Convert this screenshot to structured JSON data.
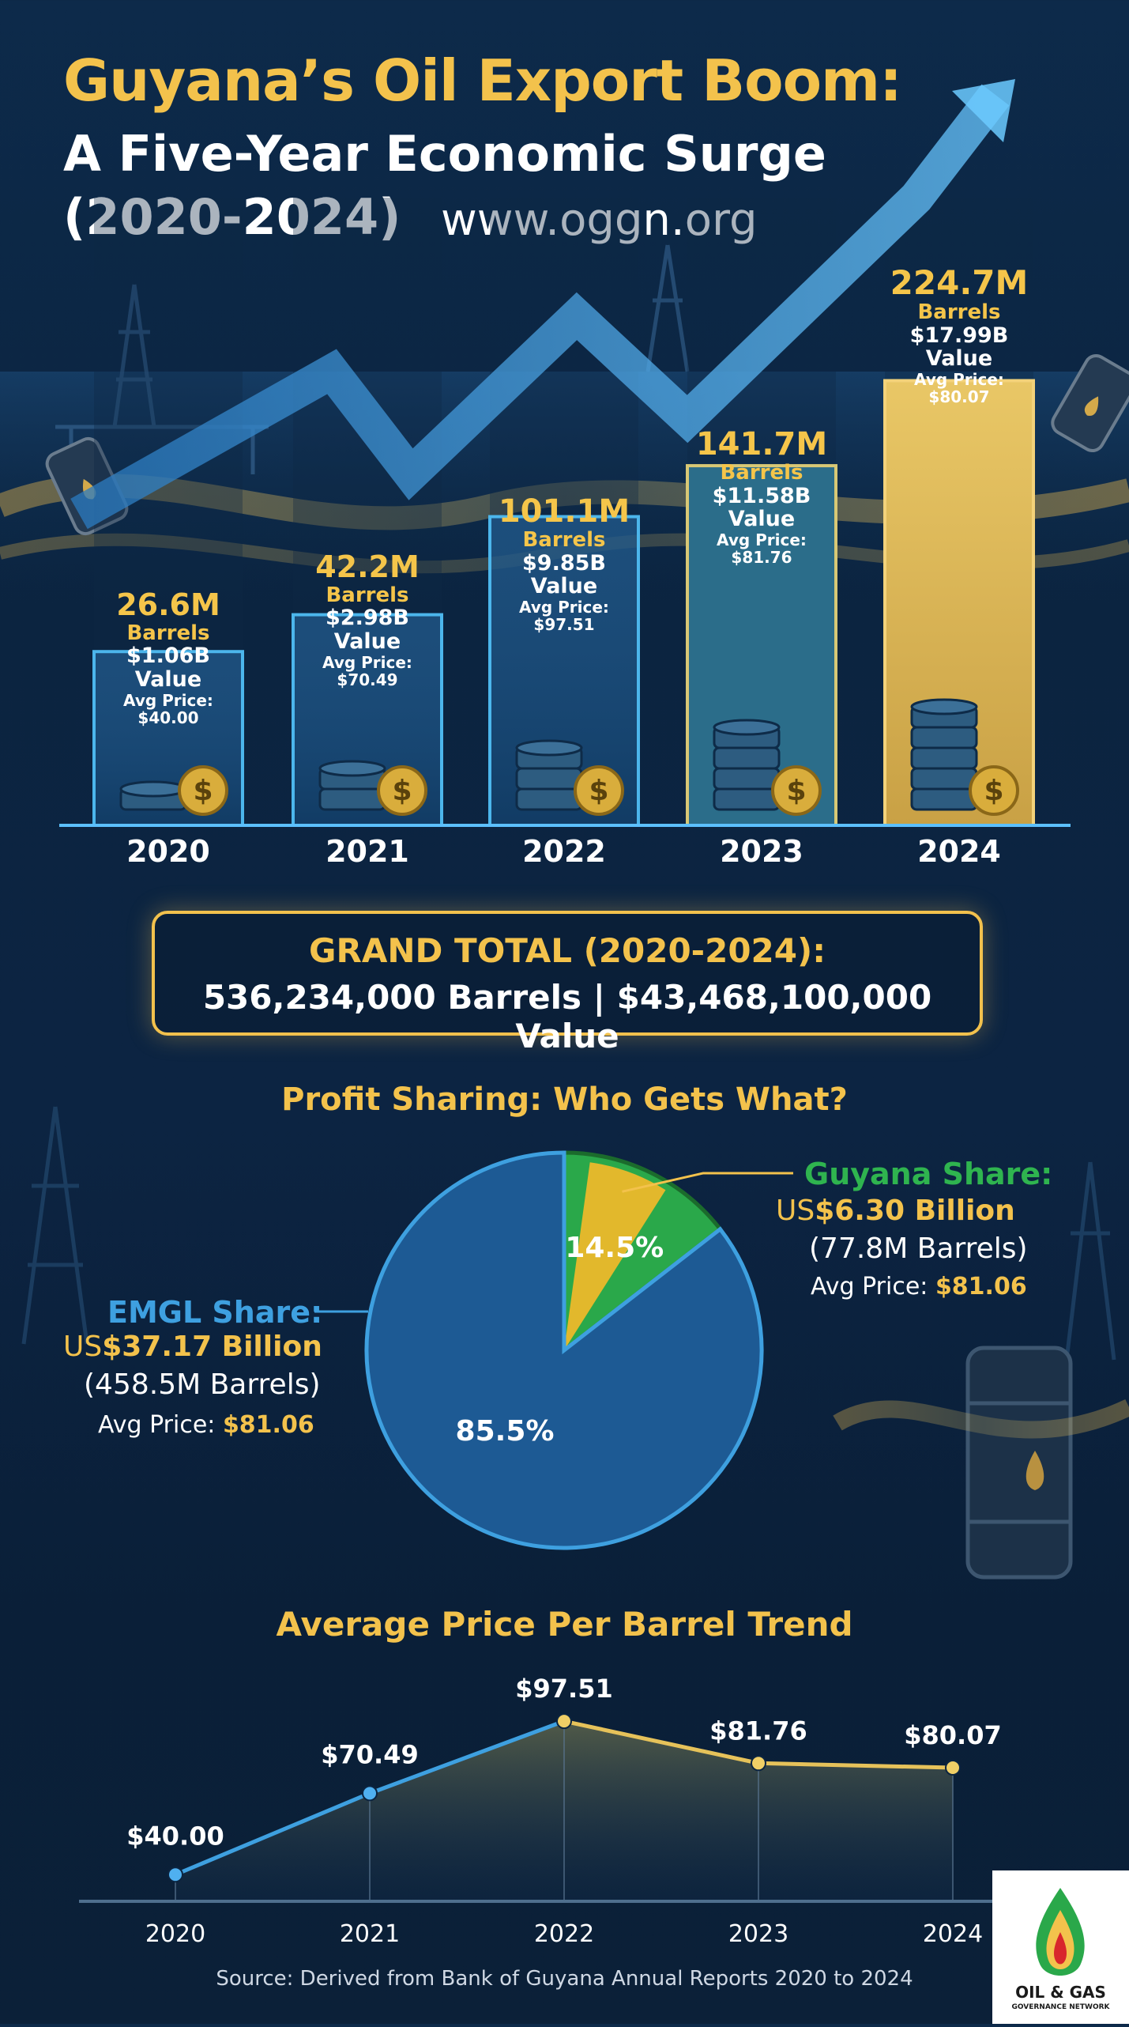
{
  "header": {
    "title_line1": "Guyana’s Oil Export Boom:",
    "title_line2": "A Five-Year Economic Surge",
    "title_line3": "(2020-2024)",
    "url": "www.oggn.org"
  },
  "chart_data": [
    {
      "type": "bar",
      "categories": [
        "2020",
        "2021",
        "2022",
        "2023",
        "2024"
      ],
      "series": [
        {
          "name": "Barrels",
          "values": [
            26.6,
            42.2,
            101.1,
            141.7,
            224.7
          ]
        }
      ],
      "labels": [
        {
          "barrels": "26.6M",
          "barrels_word": "Barrels",
          "value": "$1.06B",
          "value_word": "Value",
          "avg_label": "Avg Price:",
          "avg": "$40.00"
        },
        {
          "barrels": "42.2M",
          "barrels_word": "Barrels",
          "value": "$2.98B",
          "value_word": "Value",
          "avg_label": "Avg Price:",
          "avg": "$70.49"
        },
        {
          "barrels": "101.1M",
          "barrels_word": "Barrels",
          "value": "$9.85B",
          "value_word": "Value",
          "avg_label": "Avg Price:",
          "avg": "$97.51"
        },
        {
          "barrels": "141.7M",
          "barrels_word": "Barrels",
          "value": "$11.58B",
          "value_word": "Value",
          "avg_label": "Avg Price:",
          "avg": "$81.76"
        },
        {
          "barrels": "224.7M",
          "barrels_word": "Barrels",
          "value": "$17.99B",
          "value_word": "Value",
          "avg_label": "Avg Price:",
          "avg": "$80.07"
        }
      ],
      "values_usd_billion": [
        1.06,
        2.98,
        9.85,
        11.58,
        17.99
      ],
      "avg_price": [
        40.0,
        70.49,
        97.51,
        81.76,
        80.07
      ],
      "ylim": [
        0,
        240
      ]
    },
    {
      "type": "pie",
      "title": "Profit Sharing: Who Gets What?",
      "slices": [
        {
          "name": "EMGL Share",
          "percent": 85.5,
          "label": "85.5%",
          "color": "#1d5a94"
        },
        {
          "name": "Guyana Share",
          "percent": 14.5,
          "label": "14.5%",
          "color": "#2aa84a"
        }
      ]
    },
    {
      "type": "line",
      "title": "Average Price Per Barrel Trend",
      "categories": [
        "2020",
        "2021",
        "2022",
        "2023",
        "2024"
      ],
      "values": [
        40.0,
        70.49,
        97.51,
        81.76,
        80.07
      ],
      "point_labels": [
        "$40.00",
        "$70.49",
        "$97.51",
        "$81.76",
        "$80.07"
      ],
      "ylim": [
        30,
        110
      ]
    }
  ],
  "grand_total": {
    "label": "GRAND TOTAL (2020-2024):",
    "value": "536,234,000 Barrels | $43,468,100,000 Value"
  },
  "pie_labels": {
    "guyana": {
      "title": "Guyana Share:",
      "amount_prefix": "US",
      "amount": "$6.30 Billion",
      "barrels": "(77.8M Barrels)",
      "avg_label": "Avg Price: ",
      "avg": "$81.06"
    },
    "emgl": {
      "title": "EMGL Share:",
      "amount_prefix": "US",
      "amount": "$37.17 Billion",
      "barrels": "(458.5M Barrels)",
      "avg_label": "Avg Price: ",
      "avg": "$81.06"
    }
  },
  "footer": {
    "source": "Source: Derived from Bank of Guyana Annual Reports 2020 to 2024"
  },
  "logo": {
    "line1": "OIL & GAS",
    "line2": "GOVERNANCE NETWORK"
  },
  "colors": {
    "gold": "#f3c24c",
    "blue": "#3ea0e0",
    "green": "#2aa84a"
  }
}
